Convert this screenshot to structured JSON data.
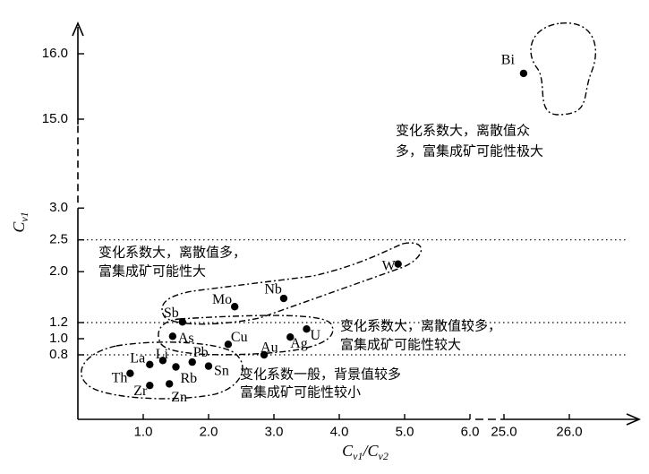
{
  "chart_data": {
    "type": "scatter",
    "xlabel": "Cv1/Cv2",
    "ylabel": "Cv1",
    "x_ticks": [
      "1.0",
      "2.0",
      "3.0",
      "4.0",
      "5.0",
      "6.0",
      "25.0",
      "26.0"
    ],
    "y_ticks": [
      "0.8",
      "1.0",
      "1.2",
      "2.0",
      "2.5",
      "3.0",
      "15.0",
      "16.0"
    ],
    "x_axis_break": [
      6.0,
      25.0
    ],
    "y_axis_break": [
      3.0,
      15.0
    ],
    "reference_lines_y": [
      0.8,
      1.2,
      2.5
    ],
    "points": [
      {
        "label": "Bi",
        "x": 25.3,
        "y": 15.7
      },
      {
        "label": "W",
        "x": 4.9,
        "y": 2.12
      },
      {
        "label": "Nb",
        "x": 3.15,
        "y": 1.58
      },
      {
        "label": "Mo",
        "x": 2.4,
        "y": 1.45
      },
      {
        "label": "Sb",
        "x": 1.6,
        "y": 1.21
      },
      {
        "label": "U",
        "x": 3.5,
        "y": 1.12
      },
      {
        "label": "Ag",
        "x": 3.25,
        "y": 1.02
      },
      {
        "label": "As",
        "x": 1.45,
        "y": 1.03
      },
      {
        "label": "Cu",
        "x": 2.3,
        "y": 0.93
      },
      {
        "label": "Au",
        "x": 2.85,
        "y": 0.8
      },
      {
        "label": "Li",
        "x": 1.3,
        "y": 0.73
      },
      {
        "label": "Pb",
        "x": 1.75,
        "y": 0.71
      },
      {
        "label": "La",
        "x": 1.1,
        "y": 0.68
      },
      {
        "label": "Sn",
        "x": 2.0,
        "y": 0.66
      },
      {
        "label": "Rb",
        "x": 1.5,
        "y": 0.65
      },
      {
        "label": "Th",
        "x": 0.8,
        "y": 0.57
      },
      {
        "label": "Zr",
        "x": 1.1,
        "y": 0.42
      },
      {
        "label": "Zn",
        "x": 1.4,
        "y": 0.44
      }
    ],
    "annotations": [
      {
        "lines": [
          "变化系数大，离散值众",
          "多，富集成矿可能性极大"
        ]
      },
      {
        "lines": [
          "变化系数大，离散值多，",
          "富集成矿可能性大"
        ]
      },
      {
        "lines": [
          "变化系数大，离散值较多，",
          "富集成矿可能性较大"
        ]
      },
      {
        "lines": [
          "变化系数一般，背景值较多",
          "富集成矿可能性较小"
        ]
      }
    ]
  }
}
